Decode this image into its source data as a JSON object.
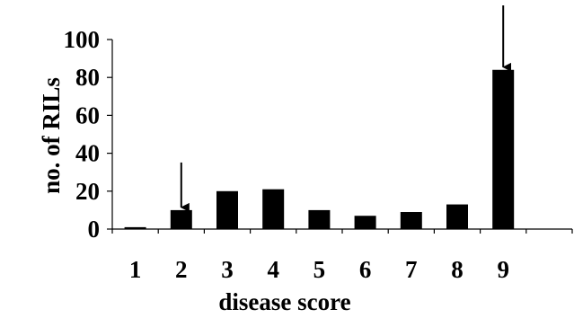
{
  "chart_data": {
    "type": "bar",
    "title": "",
    "xlabel": "disease score",
    "ylabel": "no. of RILs",
    "categories": [
      "1",
      "2",
      "3",
      "4",
      "5",
      "6",
      "7",
      "8",
      "9",
      ""
    ],
    "values": [
      1,
      10,
      20,
      21,
      10,
      7,
      9,
      13,
      84,
      null
    ],
    "ylim": [
      0,
      100
    ],
    "yticks": [
      "0",
      "20",
      "40",
      "60",
      "80",
      "100"
    ],
    "grid": false,
    "legend": "none",
    "bar_color": "#000000",
    "arrow_markers": [
      "2",
      "9"
    ]
  }
}
